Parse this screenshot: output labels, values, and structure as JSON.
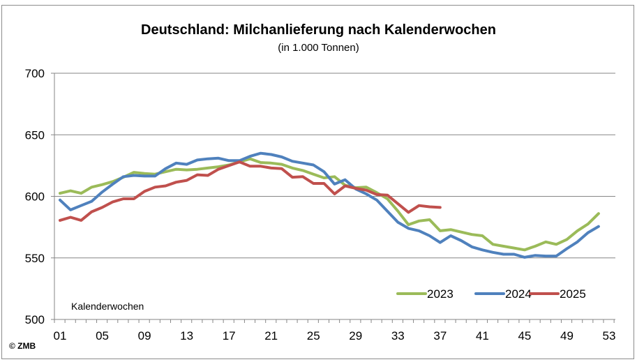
{
  "chart_data": {
    "type": "line",
    "title": "Deutschland: Milchanlieferung nach Kalenderwochen",
    "subtitle": "(in 1.000 Tonnen)",
    "xlabel": "Kalenderwochen",
    "ylabel": "",
    "ylim": [
      500,
      700
    ],
    "xlim": [
      1,
      53
    ],
    "yticks": [
      "500",
      "550",
      "600",
      "650",
      "700"
    ],
    "xticks": [
      "01",
      "05",
      "09",
      "13",
      "17",
      "21",
      "25",
      "29",
      "33",
      "37",
      "41",
      "45",
      "49",
      "53"
    ],
    "grid": "horizontal",
    "legend_position": "bottom-right",
    "copyright": "© ZMB",
    "series": [
      {
        "name": "2023",
        "color": "#9bbb59",
        "x": [
          1,
          2,
          3,
          4,
          5,
          6,
          7,
          8,
          9,
          10,
          11,
          12,
          13,
          14,
          15,
          16,
          17,
          18,
          19,
          20,
          21,
          22,
          23,
          24,
          25,
          26,
          27,
          28,
          29,
          30,
          31,
          32,
          33,
          34,
          35,
          36,
          37,
          38,
          39,
          40,
          41,
          42,
          43,
          44,
          45,
          46,
          47,
          48,
          49,
          50,
          51,
          52
        ],
        "values": [
          602.5,
          604.5,
          602.5,
          607.5,
          609.5,
          612,
          615.5,
          619.5,
          618.5,
          618,
          620,
          622,
          621.5,
          622,
          623,
          624,
          625.5,
          628,
          630.5,
          627.5,
          627,
          626,
          623,
          621,
          618,
          615,
          616,
          609,
          607,
          607.5,
          603,
          598,
          588,
          577,
          580,
          581,
          572,
          573,
          571,
          569,
          568,
          561,
          559.5,
          558,
          556.5,
          559.5,
          563,
          561,
          565,
          572,
          577.5,
          586
        ]
      },
      {
        "name": "2024",
        "color": "#4f81bd",
        "x": [
          1,
          2,
          3,
          4,
          5,
          6,
          7,
          8,
          9,
          10,
          11,
          12,
          13,
          14,
          15,
          16,
          17,
          18,
          19,
          20,
          21,
          22,
          23,
          24,
          25,
          26,
          27,
          28,
          29,
          30,
          31,
          32,
          33,
          34,
          35,
          36,
          37,
          38,
          39,
          40,
          41,
          42,
          43,
          44,
          45,
          46,
          47,
          48,
          49,
          50,
          51,
          52
        ],
        "values": [
          597,
          589,
          592.5,
          596,
          603.5,
          610,
          616,
          617,
          616.5,
          616.5,
          622.5,
          627,
          626,
          629.5,
          630.5,
          631,
          629,
          629,
          632.5,
          635,
          634,
          632,
          628.5,
          627,
          625.5,
          620,
          610,
          613.5,
          606,
          602,
          597,
          588,
          579,
          574,
          572,
          568,
          562.5,
          568,
          564,
          559,
          556.5,
          554.5,
          553,
          553,
          550.5,
          552,
          551.5,
          551.5,
          557.5,
          563,
          570.5,
          575.5
        ]
      },
      {
        "name": "2025",
        "color": "#c0504d",
        "x": [
          1,
          2,
          3,
          4,
          5,
          6,
          7,
          8,
          9,
          10,
          11,
          12,
          13,
          14,
          15,
          16,
          17,
          18,
          19,
          20,
          21,
          22,
          23,
          24,
          25,
          26,
          27,
          28,
          29,
          30,
          31,
          32,
          33,
          34,
          35,
          36,
          37
        ],
        "values": [
          580.5,
          583,
          580.5,
          587.5,
          591,
          595.5,
          598,
          598,
          604,
          607.5,
          608.5,
          611.5,
          613,
          617.5,
          617,
          622,
          625,
          628,
          624.5,
          624.5,
          623,
          622.5,
          615.5,
          616,
          610.5,
          610.5,
          602,
          608.5,
          606.5,
          605,
          601.5,
          601,
          594,
          587,
          592.5,
          591.5,
          591
        ]
      }
    ]
  }
}
